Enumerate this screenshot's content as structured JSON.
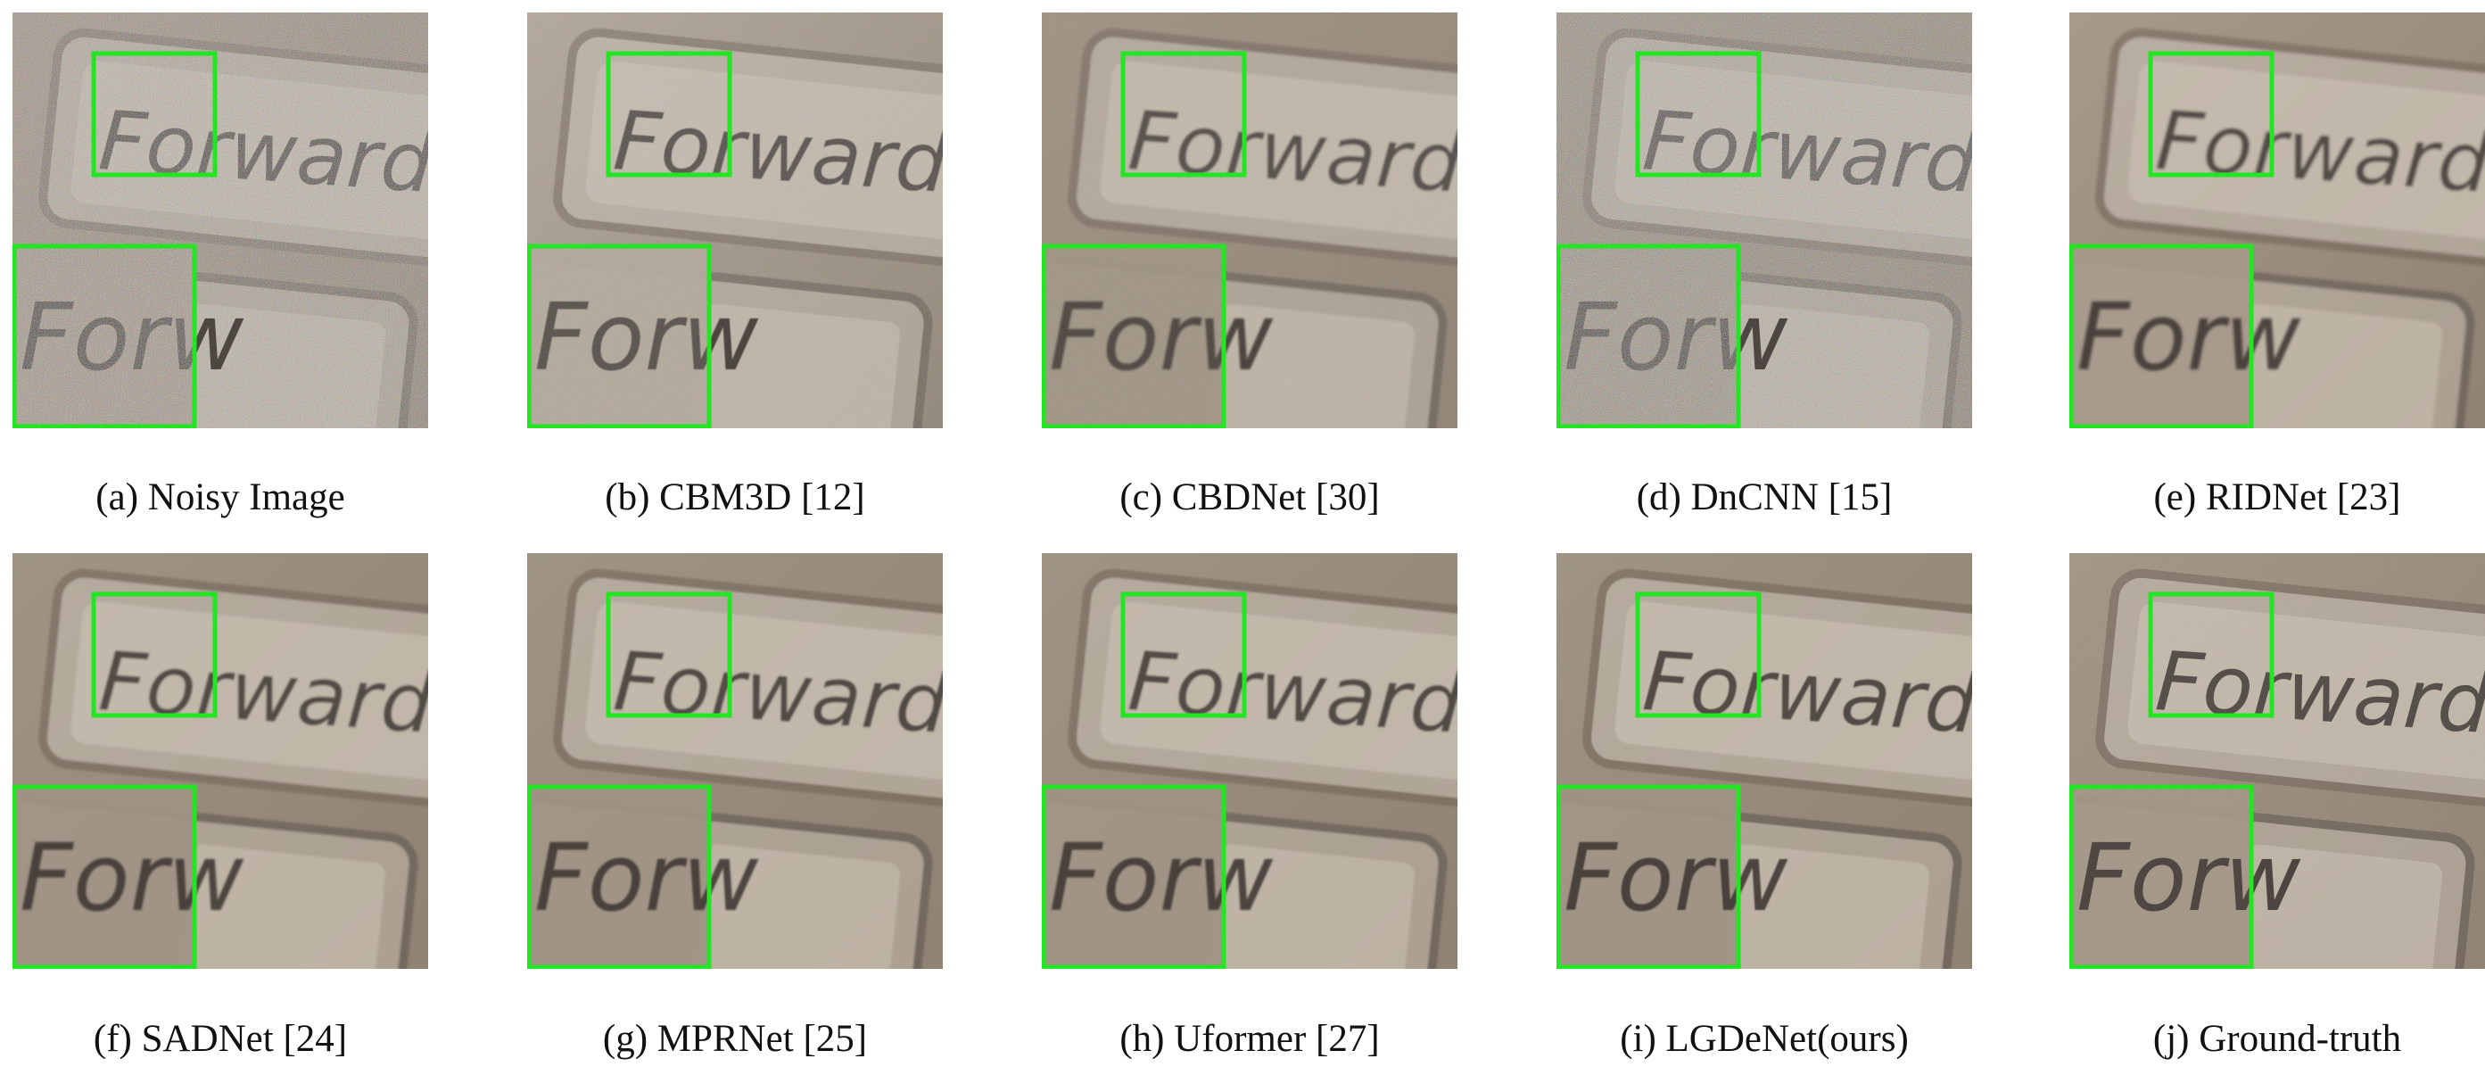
{
  "figure": {
    "word": "Forward",
    "inset_word": "Forw",
    "box_color": "#22e622",
    "panels": [
      {
        "id": "a",
        "caption": "(a) Noisy Image",
        "noise": "heavy",
        "blur": 0,
        "bg": "#a39385"
      },
      {
        "id": "b",
        "caption": "(b) CBM3D [12]",
        "noise": "medium",
        "blur": 0.6,
        "bg": "#b2a698"
      },
      {
        "id": "c",
        "caption": "(c) CBDNet [30]",
        "noise": "light",
        "blur": 1.4,
        "bg": "#9e9282"
      },
      {
        "id": "d",
        "caption": "(d) DnCNN [15]",
        "noise": "heavy",
        "blur": 0.3,
        "bg": "#9c9080"
      },
      {
        "id": "e",
        "caption": "(e) RIDNet [23]",
        "noise": "none",
        "blur": 1.6,
        "bg": "#a69a8c"
      },
      {
        "id": "f",
        "caption": "(f) SADNet [24]",
        "noise": "none",
        "blur": 1.2,
        "bg": "#9f9485"
      },
      {
        "id": "g",
        "caption": "(g) MPRNet [25]",
        "noise": "none",
        "blur": 1.0,
        "bg": "#9f9485"
      },
      {
        "id": "h",
        "caption": "(h) Uformer [27]",
        "noise": "none",
        "blur": 1.0,
        "bg": "#9f9485"
      },
      {
        "id": "i",
        "caption": "(i) LGDeNet(ours)",
        "noise": "none",
        "blur": 0.8,
        "bg": "#9f9485"
      },
      {
        "id": "j",
        "caption": "(j) Ground-truth",
        "noise": "faint",
        "blur": 0.2,
        "bg": "#a29686"
      }
    ]
  }
}
